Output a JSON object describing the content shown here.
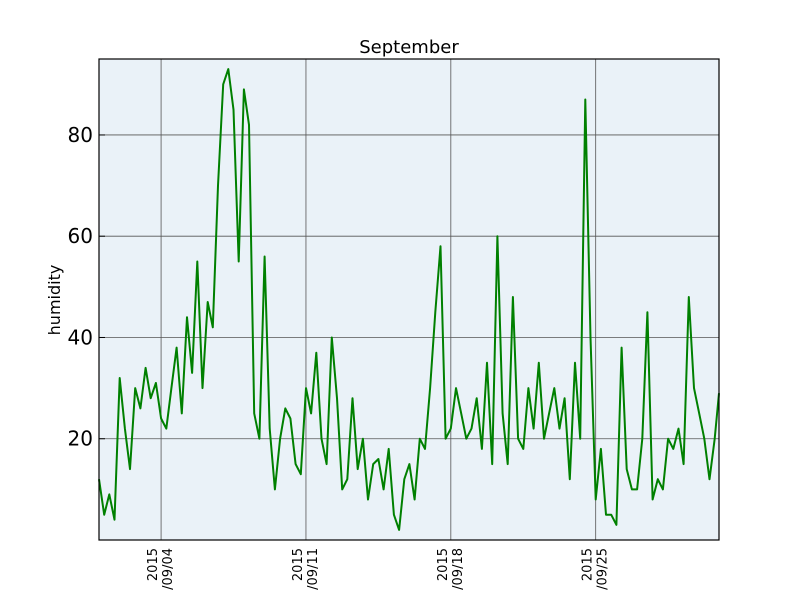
{
  "chart_data": {
    "type": "line",
    "title": "September",
    "xlabel": "",
    "ylabel": "humidity",
    "xlim": [
      "2015-09-01",
      "2015-09-30 23:00"
    ],
    "ylim": [
      0,
      95
    ],
    "grid": true,
    "background": "#eaf2f8",
    "y_ticks": [
      20,
      40,
      60,
      80
    ],
    "x_ticks": [
      {
        "date": "2015-09-04",
        "line1": "2015",
        "line2": "/09/04"
      },
      {
        "date": "2015-09-11",
        "line1": "2015",
        "line2": "/09/11"
      },
      {
        "date": "2015-09-18",
        "line1": "2015",
        "line2": "/09/18"
      },
      {
        "date": "2015-09-25",
        "line1": "2015",
        "line2": "/09/25"
      }
    ],
    "series": [
      {
        "color": "#008000",
        "x": [
          "2015-09-01 00:00",
          "2015-09-01 06:00",
          "2015-09-01 12:00",
          "2015-09-01 18:00",
          "2015-09-02 00:00",
          "2015-09-02 06:00",
          "2015-09-02 12:00",
          "2015-09-02 18:00",
          "2015-09-03 00:00",
          "2015-09-03 06:00",
          "2015-09-03 12:00",
          "2015-09-03 18:00",
          "2015-09-04 00:00",
          "2015-09-04 06:00",
          "2015-09-04 12:00",
          "2015-09-04 18:00",
          "2015-09-05 00:00",
          "2015-09-05 06:00",
          "2015-09-05 12:00",
          "2015-09-05 18:00",
          "2015-09-06 00:00",
          "2015-09-06 06:00",
          "2015-09-06 12:00",
          "2015-09-06 18:00",
          "2015-09-07 00:00",
          "2015-09-07 06:00",
          "2015-09-07 12:00",
          "2015-09-07 18:00",
          "2015-09-08 00:00",
          "2015-09-08 06:00",
          "2015-09-08 12:00",
          "2015-09-08 18:00",
          "2015-09-09 00:00",
          "2015-09-09 06:00",
          "2015-09-09 12:00",
          "2015-09-09 18:00",
          "2015-09-10 00:00",
          "2015-09-10 06:00",
          "2015-09-10 12:00",
          "2015-09-10 18:00",
          "2015-09-11 00:00",
          "2015-09-11 06:00",
          "2015-09-11 12:00",
          "2015-09-11 18:00",
          "2015-09-12 00:00",
          "2015-09-12 06:00",
          "2015-09-12 12:00",
          "2015-09-12 18:00",
          "2015-09-13 00:00",
          "2015-09-13 06:00",
          "2015-09-13 12:00",
          "2015-09-13 18:00",
          "2015-09-14 00:00",
          "2015-09-14 06:00",
          "2015-09-14 12:00",
          "2015-09-14 18:00",
          "2015-09-15 00:00",
          "2015-09-15 06:00",
          "2015-09-15 12:00",
          "2015-09-15 18:00",
          "2015-09-16 00:00",
          "2015-09-16 06:00",
          "2015-09-16 12:00",
          "2015-09-16 18:00",
          "2015-09-17 00:00",
          "2015-09-17 06:00",
          "2015-09-17 12:00",
          "2015-09-17 18:00",
          "2015-09-18 00:00",
          "2015-09-18 06:00",
          "2015-09-18 12:00",
          "2015-09-18 18:00",
          "2015-09-19 00:00",
          "2015-09-19 06:00",
          "2015-09-19 12:00",
          "2015-09-19 18:00",
          "2015-09-20 00:00",
          "2015-09-20 06:00",
          "2015-09-20 12:00",
          "2015-09-20 18:00",
          "2015-09-21 00:00",
          "2015-09-21 06:00",
          "2015-09-21 12:00",
          "2015-09-21 18:00",
          "2015-09-22 00:00",
          "2015-09-22 06:00",
          "2015-09-22 12:00",
          "2015-09-22 18:00",
          "2015-09-23 00:00",
          "2015-09-23 06:00",
          "2015-09-23 12:00",
          "2015-09-23 18:00",
          "2015-09-24 00:00",
          "2015-09-24 06:00",
          "2015-09-24 12:00",
          "2015-09-24 18:00",
          "2015-09-25 00:00",
          "2015-09-25 06:00",
          "2015-09-25 12:00",
          "2015-09-25 18:00",
          "2015-09-26 00:00",
          "2015-09-26 06:00",
          "2015-09-26 12:00",
          "2015-09-26 18:00",
          "2015-09-27 00:00",
          "2015-09-27 06:00",
          "2015-09-27 12:00",
          "2015-09-27 18:00",
          "2015-09-28 00:00",
          "2015-09-28 06:00",
          "2015-09-28 12:00",
          "2015-09-28 18:00",
          "2015-09-29 00:00",
          "2015-09-29 06:00",
          "2015-09-29 12:00",
          "2015-09-29 18:00",
          "2015-09-30 00:00",
          "2015-09-30 06:00",
          "2015-09-30 12:00",
          "2015-09-30 18:00",
          "2015-09-30 23:00"
        ],
        "y": [
          12,
          5,
          9,
          4,
          32,
          22,
          14,
          30,
          26,
          34,
          28,
          31,
          24,
          22,
          30,
          38,
          25,
          44,
          33,
          55,
          30,
          47,
          42,
          70,
          90,
          93,
          85,
          55,
          89,
          82,
          25,
          20,
          56,
          22,
          10,
          20,
          26,
          24,
          15,
          13,
          30,
          25,
          37,
          20,
          15,
          40,
          28,
          10,
          12,
          28,
          14,
          20,
          8,
          15,
          16,
          10,
          18,
          5,
          2,
          12,
          15,
          8,
          20,
          18,
          30,
          45,
          58,
          20,
          22,
          30,
          25,
          20,
          22,
          28,
          18,
          35,
          15,
          60,
          25,
          15,
          48,
          20,
          18,
          30,
          22,
          35,
          20,
          25,
          30,
          22,
          28,
          12,
          35,
          20,
          87,
          40,
          8,
          18,
          5,
          5,
          3,
          38,
          14,
          10,
          10,
          20,
          45,
          8,
          12,
          10,
          20,
          18,
          22,
          15,
          48,
          30,
          25,
          20,
          12,
          20,
          29
        ]
      }
    ]
  }
}
